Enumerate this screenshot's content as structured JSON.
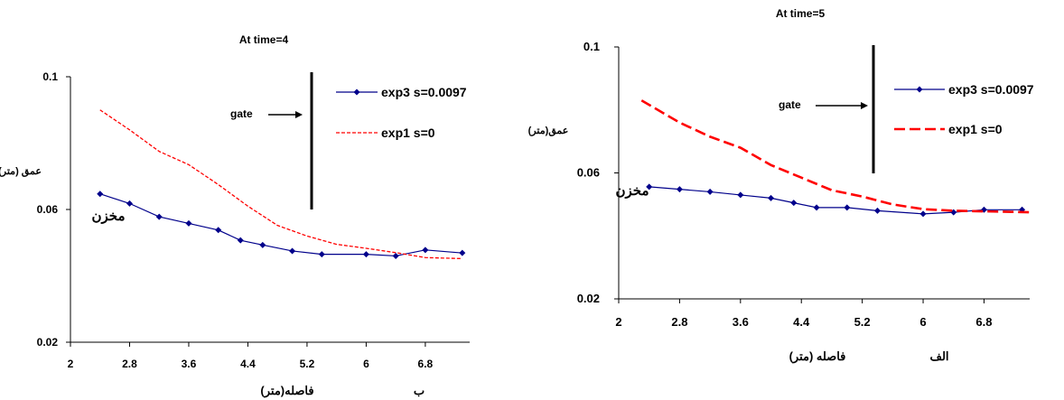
{
  "chart_data": [
    {
      "type": "line",
      "title": "At time=4",
      "ylabel": "عمق (متر)",
      "xlabel": "فاصله(متر)",
      "panel_label": "ب",
      "xlim": [
        2,
        7.4
      ],
      "ylim": [
        0.02,
        0.1
      ],
      "x_ticks": [
        "2",
        "2.8",
        "3.6",
        "4.4",
        "5.2",
        "6",
        "6.8"
      ],
      "y_ticks": [
        "0.02",
        "0.06",
        "0.1"
      ],
      "gate_label": "gate",
      "annotation": "مخزن",
      "series": [
        {
          "name": "exp3 s=0.0097",
          "color": "#00008b",
          "style": "solid-diamond",
          "x": [
            2.4,
            2.8,
            3.2,
            3.6,
            4.0,
            4.3,
            4.6,
            5.0,
            5.4,
            6.0,
            6.4,
            6.8,
            7.3
          ],
          "y": [
            0.0647,
            0.0618,
            0.0578,
            0.0558,
            0.0538,
            0.0507,
            0.0493,
            0.0475,
            0.0465,
            0.0465,
            0.046,
            0.0478,
            0.0469
          ]
        },
        {
          "name": "exp1 s=0",
          "color": "#ff0000",
          "style": "dashed",
          "x": [
            2.4,
            2.8,
            3.2,
            3.6,
            4.0,
            4.4,
            4.8,
            5.2,
            5.6,
            6.0,
            6.4,
            6.8,
            7.3
          ],
          "y": [
            0.09,
            0.084,
            0.0775,
            0.0735,
            0.0675,
            0.061,
            0.0552,
            0.052,
            0.0495,
            0.0483,
            0.047,
            0.0455,
            0.0452
          ]
        }
      ]
    },
    {
      "type": "line",
      "title": "At time=5",
      "ylabel": "عمق(متر)",
      "xlabel": "فاصله (متر)",
      "panel_label": "الف",
      "xlim": [
        2,
        7.4
      ],
      "ylim": [
        0.02,
        0.1
      ],
      "x_ticks": [
        "2",
        "2.8",
        "3.6",
        "4.4",
        "5.2",
        "6",
        "6.8"
      ],
      "y_ticks": [
        "0.02",
        "0.06",
        "0.1"
      ],
      "gate_label": "gate",
      "annotation": "مخزن",
      "series": [
        {
          "name": "exp3 s=0.0097",
          "color": "#00008b",
          "style": "solid-diamond",
          "x": [
            2.4,
            2.8,
            3.2,
            3.6,
            4.0,
            4.3,
            4.6,
            5.0,
            5.4,
            6.0,
            6.4,
            6.8,
            7.3
          ],
          "y": [
            0.0556,
            0.0548,
            0.054,
            0.053,
            0.052,
            0.0505,
            0.049,
            0.049,
            0.048,
            0.047,
            0.0475,
            0.0483,
            0.0483
          ]
        },
        {
          "name": "exp1  s=0",
          "color": "#ff0000",
          "style": "dashed",
          "x": [
            2.3,
            2.8,
            3.2,
            3.6,
            4.0,
            4.4,
            4.8,
            5.2,
            5.6,
            6.0,
            6.4,
            6.8,
            7.4
          ],
          "y": [
            0.083,
            0.076,
            0.0715,
            0.068,
            0.0625,
            0.0585,
            0.0545,
            0.0525,
            0.05,
            0.0485,
            0.048,
            0.0478,
            0.0475
          ]
        }
      ]
    }
  ]
}
